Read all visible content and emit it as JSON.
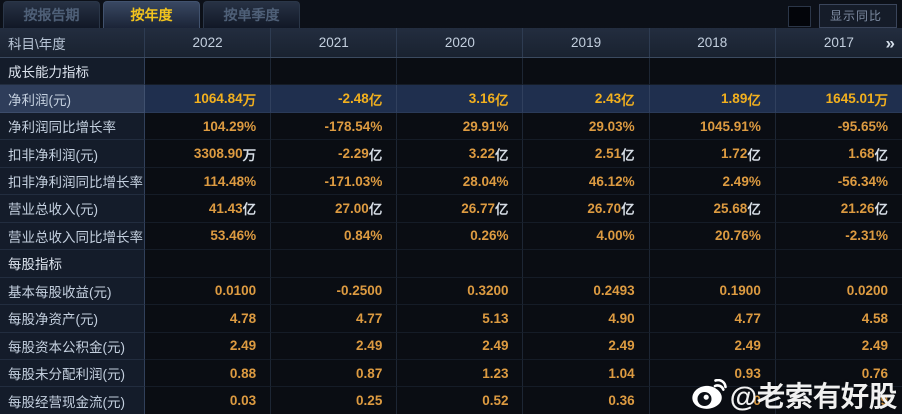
{
  "tabs": [
    {
      "label": "按报告期",
      "active": false
    },
    {
      "label": "按年度",
      "active": true
    },
    {
      "label": "按单季度",
      "active": false
    }
  ],
  "controls": {
    "show_yoy_label": "显示同比",
    "checkbox_checked": false
  },
  "table": {
    "corner_label": "科目\\年度",
    "years": [
      "2022",
      "2021",
      "2020",
      "2019",
      "2018",
      "2017"
    ],
    "more_label": "»",
    "sections": [
      "成长能力指标",
      "每股指标"
    ],
    "rows": [
      {
        "type": "section",
        "label": "成长能力指标",
        "values": [
          "",
          "",
          "",
          "",
          "",
          ""
        ]
      },
      {
        "type": "data",
        "label": "净利润(元)",
        "highlight": true,
        "values": [
          "1064.84万",
          "-2.48亿",
          "3.16亿",
          "2.43亿",
          "1.89亿",
          "1645.01万"
        ]
      },
      {
        "type": "data",
        "label": "净利润同比增长率",
        "values": [
          "104.29%",
          "-178.54%",
          "29.91%",
          "29.03%",
          "1045.91%",
          "-95.65%"
        ]
      },
      {
        "type": "data",
        "label": "扣非净利润(元)",
        "values": [
          "3308.90万",
          "-2.29亿",
          "3.22亿",
          "2.51亿",
          "1.72亿",
          "1.68亿"
        ]
      },
      {
        "type": "data",
        "label": "扣非净利润同比增长率",
        "values": [
          "114.48%",
          "-171.03%",
          "28.04%",
          "46.12%",
          "2.49%",
          "-56.34%"
        ]
      },
      {
        "type": "data",
        "label": "营业总收入(元)",
        "values": [
          "41.43亿",
          "27.00亿",
          "26.77亿",
          "26.70亿",
          "25.68亿",
          "21.26亿"
        ]
      },
      {
        "type": "data",
        "label": "营业总收入同比增长率",
        "values": [
          "53.46%",
          "0.84%",
          "0.26%",
          "4.00%",
          "20.76%",
          "-2.31%"
        ]
      },
      {
        "type": "section",
        "label": "每股指标",
        "values": [
          "",
          "",
          "",
          "",
          "",
          ""
        ]
      },
      {
        "type": "data",
        "label": "基本每股收益(元)",
        "values": [
          "0.0100",
          "-0.2500",
          "0.3200",
          "0.2493",
          "0.1900",
          "0.0200"
        ]
      },
      {
        "type": "data",
        "label": "每股净资产(元)",
        "values": [
          "4.78",
          "4.77",
          "5.13",
          "4.90",
          "4.77",
          "4.58"
        ]
      },
      {
        "type": "data",
        "label": "每股资本公积金(元)",
        "values": [
          "2.49",
          "2.49",
          "2.49",
          "2.49",
          "2.49",
          "2.49"
        ]
      },
      {
        "type": "data",
        "label": "每股未分配利润(元)",
        "values": [
          "0.88",
          "0.87",
          "1.23",
          "1.04",
          "0.93",
          "0.76"
        ]
      },
      {
        "type": "data",
        "label": "每股经营现金流(元)",
        "values": [
          "0.03",
          "0.25",
          "0.52",
          "0.36",
          "0",
          "9"
        ]
      }
    ]
  },
  "watermark": {
    "icon": "weibo-icon",
    "text": "@老索有好股"
  },
  "colors": {
    "value_text": "#dd9b41",
    "value_highlight_text": "#f2b01e",
    "tab_active_text": "#f3c41d",
    "highlight_row_bg": "#1f2f4e",
    "label_text": "#c4d0df",
    "header_bg": "#1e2838"
  }
}
